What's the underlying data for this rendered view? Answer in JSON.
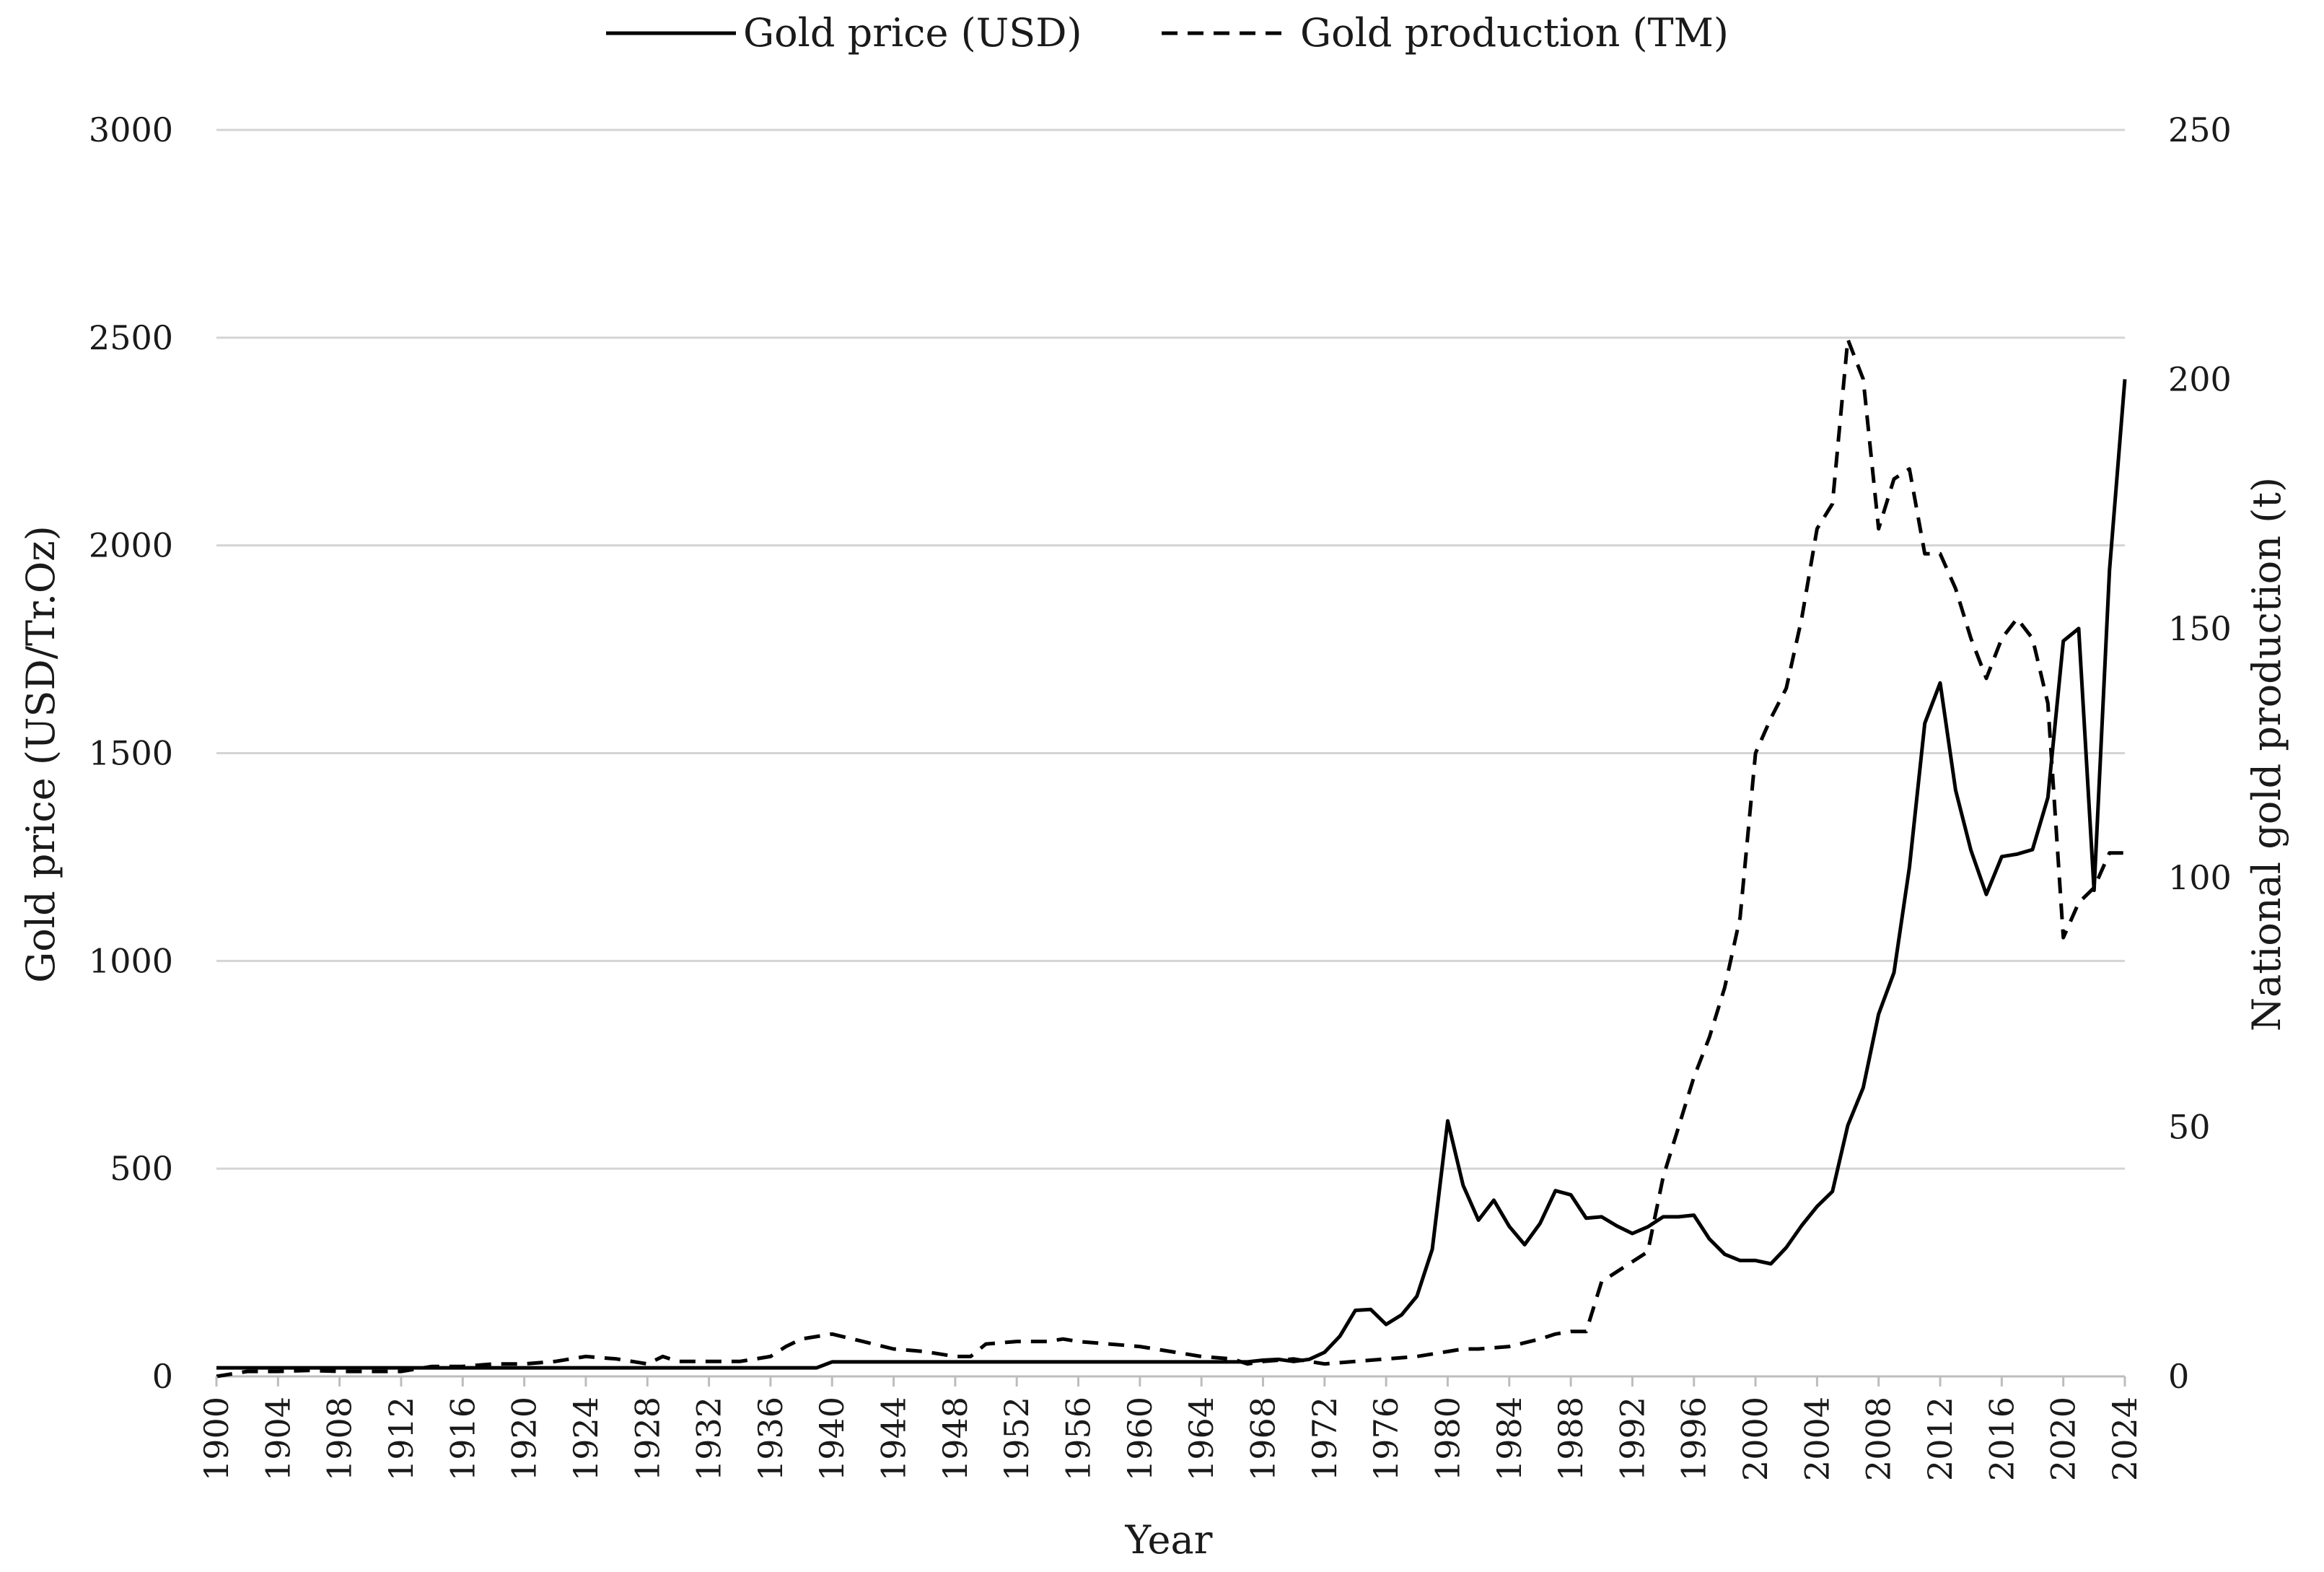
{
  "chart_data": {
    "type": "line",
    "title": "",
    "xlabel": "Year",
    "ylabel_left": "Gold price (USD/Tr.Oz)",
    "ylabel_right": "National gold production (t)",
    "legend": {
      "placement": "top-center",
      "items": [
        {
          "name": "Gold price (USD)",
          "style": "solid"
        },
        {
          "name": "Gold production (TM)",
          "style": "dashed"
        }
      ]
    },
    "grid": true,
    "xlim": [
      1900,
      2024
    ],
    "ylim_left": [
      0,
      3000
    ],
    "ylim_right": [
      0,
      250
    ],
    "x_ticks": [
      "1900",
      "1904",
      "1908",
      "1912",
      "1916",
      "1920",
      "1924",
      "1928",
      "1932",
      "1936",
      "1940",
      "1944",
      "1948",
      "1952",
      "1956",
      "1960",
      "1964",
      "1968",
      "1972",
      "1976",
      "1980",
      "1984",
      "1988",
      "1992",
      "1996",
      "2000",
      "2004",
      "2008",
      "2012",
      "2016",
      "2020",
      "2024"
    ],
    "y_ticks_left": [
      "0",
      "500",
      "1000",
      "1500",
      "2000",
      "2500",
      "3000"
    ],
    "y_ticks_right": [
      "0",
      "50",
      "100",
      "150",
      "200",
      "250"
    ],
    "series": [
      {
        "name": "Gold price (USD)",
        "axis": "left",
        "style": "solid",
        "x": [
          1900,
          1933,
          1934,
          1939,
          1940,
          1948,
          1949,
          1950,
          1964,
          1965,
          1966,
          1967,
          1968,
          1969,
          1970,
          1971,
          1972,
          1973,
          1974,
          1975,
          1976,
          1977,
          1978,
          1979,
          1980,
          1981,
          1982,
          1983,
          1984,
          1985,
          1986,
          1987,
          1988,
          1989,
          1990,
          1991,
          1992,
          1993,
          1994,
          1995,
          1996,
          1997,
          1998,
          1999,
          2000,
          2001,
          2002,
          2003,
          2004,
          2005,
          2006,
          2007,
          2008,
          2009,
          2010,
          2011,
          2012,
          2013,
          2014,
          2015,
          2016,
          2017,
          2018,
          2019,
          2020,
          2021,
          2022,
          2023,
          2024
        ],
        "values": [
          20.7,
          20.7,
          20.7,
          20.7,
          35,
          35,
          35,
          35,
          35,
          35,
          35,
          35,
          39,
          41,
          36,
          41,
          58,
          97,
          159,
          161,
          125,
          148,
          193,
          306,
          615,
          460,
          376,
          424,
          361,
          317,
          368,
          447,
          437,
          381,
          384,
          362,
          344,
          360,
          384,
          384,
          388,
          331,
          294,
          279,
          279,
          271,
          310,
          363,
          409,
          445,
          604,
          695,
          872,
          972,
          1225,
          1572,
          1669,
          1411,
          1266,
          1160,
          1251,
          1257,
          1268,
          1393,
          1770,
          1800,
          1170,
          1940,
          2400
        ]
      },
      {
        "name": "Gold production (TM)",
        "axis": "right",
        "style": "dashed",
        "x": [
          1900,
          1902,
          1904,
          1906,
          1908,
          1910,
          1912,
          1914,
          1916,
          1918,
          1920,
          1922,
          1924,
          1926,
          1928,
          1929,
          1930,
          1932,
          1934,
          1936,
          1937,
          1938,
          1940,
          1942,
          1944,
          1946,
          1948,
          1949,
          1950,
          1952,
          1954,
          1955,
          1956,
          1958,
          1960,
          1962,
          1964,
          1966,
          1967,
          1968,
          1970,
          1972,
          1974,
          1976,
          1978,
          1980,
          1981,
          1982,
          1984,
          1986,
          1987,
          1988,
          1989,
          1990,
          1991,
          1992,
          1993,
          1994,
          1995,
          1996,
          1997,
          1998,
          1999,
          2000,
          2001,
          2002,
          2003,
          2004,
          2005,
          2006,
          2007,
          2008,
          2009,
          2010,
          2011,
          2012,
          2013,
          2014,
          2015,
          2016,
          2017,
          2018,
          2019,
          2020,
          2021,
          2022,
          2023,
          2024
        ],
        "values": [
          0,
          1,
          1,
          1.2,
          1,
          1,
          1,
          2,
          2,
          2.5,
          2.5,
          3,
          4,
          3.5,
          2.5,
          4,
          3,
          3,
          3,
          4,
          6,
          7.5,
          8.5,
          7,
          5.5,
          5,
          4,
          4,
          6.5,
          7,
          7,
          7.5,
          7,
          6.5,
          6,
          5,
          4,
          3.5,
          2.5,
          3,
          3.5,
          2.5,
          3,
          3.5,
          4,
          5,
          5.5,
          5.5,
          6,
          7.5,
          8.5,
          9,
          9,
          19,
          21,
          23,
          25,
          40,
          50,
          60,
          68,
          78,
          92,
          125,
          132,
          138,
          152,
          170,
          175,
          208,
          200,
          170,
          180,
          182,
          165,
          165,
          158,
          148,
          140,
          148,
          152,
          148,
          135,
          88,
          95,
          98,
          105,
          105
        ]
      }
    ]
  }
}
